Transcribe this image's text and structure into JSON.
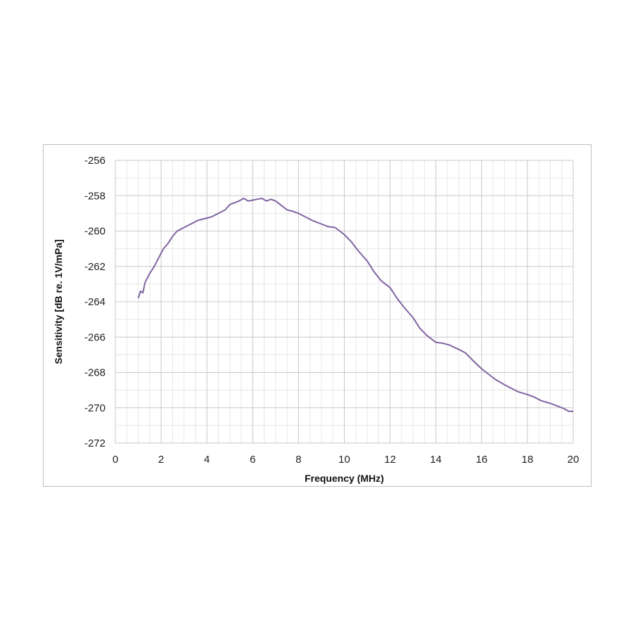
{
  "chart_data": {
    "type": "line",
    "title": "",
    "xlabel": "Frequency (MHz)",
    "ylabel": "Sensitivity [dB re. 1V/mPa]",
    "xlim": [
      0,
      20
    ],
    "ylim": [
      -272,
      -256
    ],
    "xticks": [
      "0",
      "2",
      "4",
      "6",
      "8",
      "10",
      "12",
      "14",
      "16",
      "18",
      "20"
    ],
    "yticks": [
      "-256",
      "-258",
      "-260",
      "-262",
      "-264",
      "-266",
      "-268",
      "-270",
      "-272"
    ],
    "grid": true,
    "legend": "none",
    "series": [
      {
        "color": "#8064a2",
        "x": [
          1.0,
          1.1,
          1.2,
          1.3,
          1.5,
          1.7,
          1.9,
          2.1,
          2.3,
          2.5,
          2.7,
          3.0,
          3.3,
          3.6,
          3.9,
          4.2,
          4.5,
          4.8,
          5.0,
          5.2,
          5.4,
          5.6,
          5.8,
          6.0,
          6.2,
          6.4,
          6.6,
          6.8,
          7.0,
          7.2,
          7.5,
          7.8,
          8.0,
          8.3,
          8.6,
          9.0,
          9.3,
          9.6,
          10.0,
          10.3,
          10.6,
          11.0,
          11.3,
          11.6,
          12.0,
          12.3,
          12.6,
          13.0,
          13.3,
          13.6,
          14.0,
          14.3,
          14.6,
          15.0,
          15.3,
          15.6,
          16.0,
          16.3,
          16.6,
          17.0,
          17.3,
          17.6,
          18.0,
          18.3,
          18.6,
          19.0,
          19.3,
          19.6,
          19.8,
          20.0
        ],
        "y": [
          -263.8,
          -263.4,
          -263.5,
          -262.9,
          -262.4,
          -262.0,
          -261.5,
          -261.0,
          -260.7,
          -260.3,
          -260.0,
          -259.8,
          -259.6,
          -259.4,
          -259.3,
          -259.2,
          -259.0,
          -258.8,
          -258.5,
          -258.4,
          -258.3,
          -258.15,
          -258.3,
          -258.25,
          -258.2,
          -258.15,
          -258.3,
          -258.2,
          -258.3,
          -258.5,
          -258.8,
          -258.9,
          -259.0,
          -259.2,
          -259.4,
          -259.6,
          -259.75,
          -259.8,
          -260.2,
          -260.6,
          -261.1,
          -261.7,
          -262.3,
          -262.8,
          -263.2,
          -263.8,
          -264.3,
          -264.9,
          -265.5,
          -265.9,
          -266.3,
          -266.35,
          -266.45,
          -266.7,
          -266.9,
          -267.3,
          -267.8,
          -268.1,
          -268.4,
          -268.7,
          -268.9,
          -269.1,
          -269.25,
          -269.4,
          -269.6,
          -269.75,
          -269.9,
          -270.05,
          -270.2,
          -270.2
        ]
      }
    ]
  }
}
